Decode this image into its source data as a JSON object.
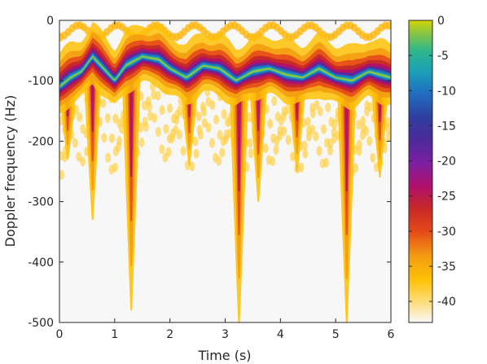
{
  "chart_data": {
    "type": "heatmap",
    "title": "",
    "xlabel": "Time (s)",
    "ylabel": "Doppler frequency (Hz)",
    "xlim": [
      0,
      6
    ],
    "ylim": [
      -500,
      0
    ],
    "xticks": [
      0,
      1,
      2,
      3,
      4,
      5,
      6
    ],
    "xtick_labels": [
      "0",
      "1",
      "2",
      "3",
      "4",
      "5",
      "6"
    ],
    "yticks": [
      0,
      -100,
      -200,
      -300,
      -400,
      -500
    ],
    "ytick_labels": [
      "0",
      "-100",
      "-200",
      "-300",
      "-400",
      "-500"
    ],
    "colorbar": {
      "range": [
        -43,
        0
      ],
      "ticks": [
        0,
        -5,
        -10,
        -15,
        -20,
        -25,
        -30,
        -35,
        -40
      ],
      "tick_labels": [
        "0",
        "-5",
        "-10",
        "-15",
        "-20",
        "-25",
        "-30",
        "-35",
        "-40"
      ]
    },
    "ridge": {
      "t": [
        0.0,
        0.2,
        0.4,
        0.6,
        0.8,
        1.0,
        1.2,
        1.5,
        1.8,
        2.0,
        2.3,
        2.6,
        2.9,
        3.2,
        3.5,
        3.8,
        4.1,
        4.4,
        4.7,
        5.0,
        5.3,
        5.6,
        6.0
      ],
      "f": [
        -110,
        -95,
        -85,
        -60,
        -80,
        -100,
        -75,
        -60,
        -65,
        -80,
        -95,
        -75,
        -80,
        -100,
        -85,
        -80,
        -90,
        -95,
        -80,
        -95,
        -100,
        -85,
        -95
      ]
    },
    "spikes": [
      {
        "t": 0.15,
        "f_min": -230
      },
      {
        "t": 0.6,
        "f_min": -330
      },
      {
        "t": 1.3,
        "f_min": -480
      },
      {
        "t": 2.35,
        "f_min": -240
      },
      {
        "t": 3.25,
        "f_min": -500
      },
      {
        "t": 3.6,
        "f_min": -300
      },
      {
        "t": 4.3,
        "f_min": -250
      },
      {
        "t": 5.2,
        "f_min": -500
      },
      {
        "t": 5.8,
        "f_min": -260
      }
    ],
    "grid": false,
    "colormap": "parula-like: white → yellow → orange → red → magenta → purple → blue → teal → green-yellow"
  }
}
